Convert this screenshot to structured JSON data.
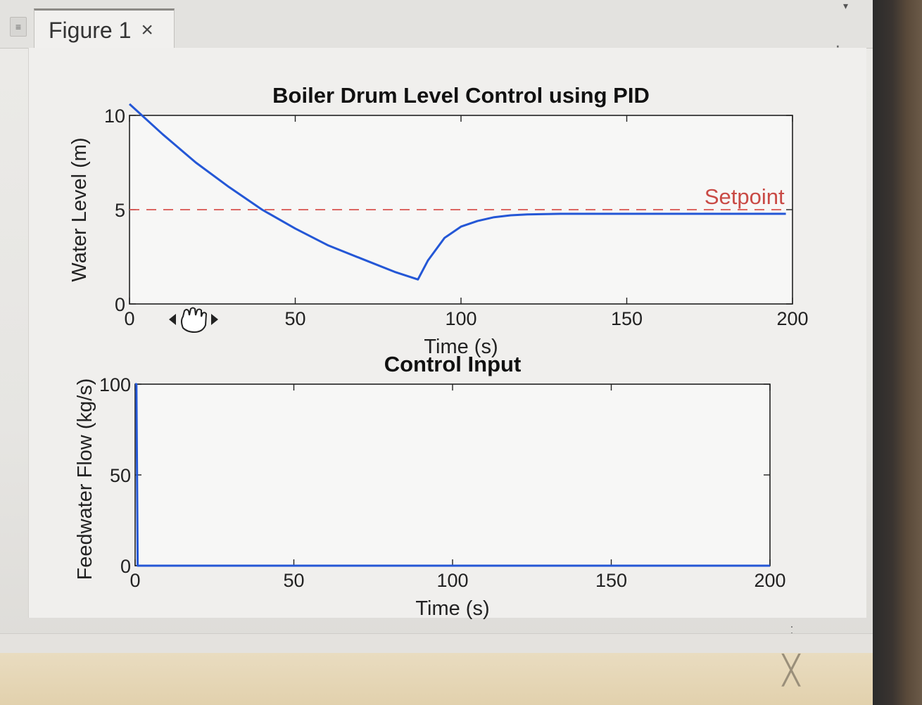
{
  "window": {
    "tab_label": "Figure 1",
    "close_glyph": "×"
  },
  "chart_data": [
    {
      "type": "line",
      "title": "Boiler Drum Level Control using PID",
      "xlabel": "Time (s)",
      "ylabel": "Water Level (m)",
      "xlim": [
        0,
        200
      ],
      "ylim": [
        0,
        10
      ],
      "xticks": [
        0,
        50,
        100,
        150,
        200
      ],
      "yticks": [
        0,
        5,
        10
      ],
      "grid": false,
      "series": [
        {
          "color": "#2457d6",
          "x": [
            0,
            10,
            20,
            30,
            40,
            50,
            60,
            70,
            80,
            87,
            90,
            95,
            100,
            105,
            110,
            115,
            120,
            130,
            140,
            150,
            160,
            170,
            180,
            190,
            198
          ],
          "y": [
            10.6,
            9.0,
            7.5,
            6.2,
            5.0,
            4.0,
            3.1,
            2.4,
            1.7,
            1.3,
            2.3,
            3.5,
            4.1,
            4.4,
            4.6,
            4.7,
            4.75,
            4.78,
            4.78,
            4.78,
            4.78,
            4.78,
            4.78,
            4.78,
            4.78
          ]
        },
        {
          "name": "Setpoint",
          "color": "#d9534f",
          "style": "dashed",
          "x": [
            0,
            198
          ],
          "y": [
            5,
            5
          ]
        }
      ],
      "annotations": [
        {
          "text": "Setpoint",
          "x": 198,
          "y": 5
        }
      ]
    },
    {
      "type": "line",
      "title": "Control Input",
      "xlabel": "Time (s)",
      "ylabel": "Feedwater Flow (kg/s)",
      "xlim": [
        0,
        200
      ],
      "ylim": [
        0,
        100
      ],
      "xticks": [
        0,
        50,
        100,
        150,
        200
      ],
      "yticks": [
        0,
        50,
        100
      ],
      "grid": false,
      "series": [
        {
          "color": "#2457d6",
          "x": [
            0,
            0.4,
            0.8,
            200
          ],
          "y": [
            100,
            100,
            0,
            0
          ]
        }
      ]
    }
  ]
}
